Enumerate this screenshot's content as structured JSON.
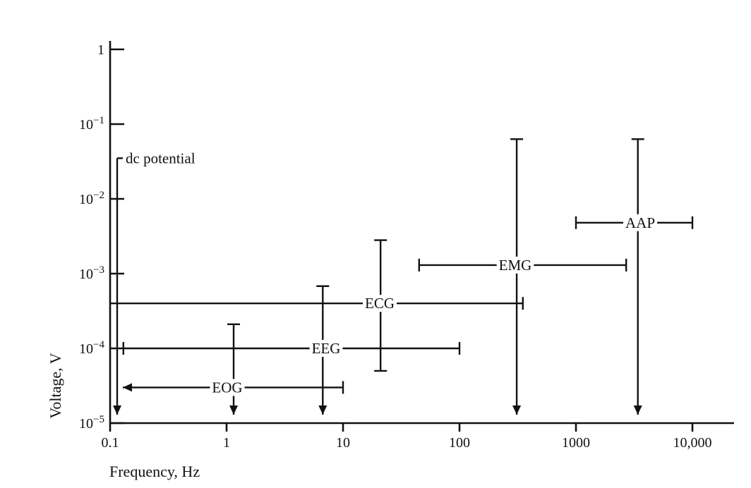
{
  "chart_data": {
    "type": "range",
    "title": "",
    "xlabel": "Frequency, Hz",
    "ylabel": "Voltage, V",
    "xscale": "log",
    "yscale": "log",
    "xlim": [
      0.1,
      10000
    ],
    "ylim": [
      1e-05,
      1
    ],
    "grid": false,
    "legend": "none",
    "x_ticks": [
      {
        "value": 0.1,
        "label": "0.1"
      },
      {
        "value": 1,
        "label": "1"
      },
      {
        "value": 10,
        "label": "10"
      },
      {
        "value": 100,
        "label": "100"
      },
      {
        "value": 1000,
        "label": "1000"
      },
      {
        "value": 10000,
        "label": "10,000"
      }
    ],
    "y_ticks": [
      {
        "value": 1,
        "base": "1",
        "exp": ""
      },
      {
        "value": 0.1,
        "base": "10",
        "exp": "−1"
      },
      {
        "value": 0.01,
        "base": "10",
        "exp": "−2"
      },
      {
        "value": 0.001,
        "base": "10",
        "exp": "−3"
      },
      {
        "value": 0.0001,
        "base": "10",
        "exp": "−4"
      },
      {
        "value": 1e-05,
        "base": "10",
        "exp": "−5"
      }
    ],
    "ranges": [
      {
        "name": "dc potential",
        "freq_range": [
          0.1,
          0.1
        ],
        "volt_range": [
          1e-05,
          0.035
        ],
        "volt_arrow_down": true
      },
      {
        "name": "EOG",
        "freq_range": [
          0.1,
          10
        ],
        "freq_at": 3e-05,
        "freq_arrow_left": true,
        "volt_at_freq": 1.15,
        "volt_range": [
          1e-05,
          0.00021
        ],
        "volt_arrow_down": true
      },
      {
        "name": "EEG",
        "freq_range": [
          0.13,
          100
        ],
        "freq_at": 0.0001,
        "volt_at_freq": 6.7,
        "volt_range": [
          1e-05,
          0.00068
        ],
        "volt_arrow_down": true
      },
      {
        "name": "ECG",
        "freq_range": [
          0.1,
          350
        ],
        "freq_at": 0.0004,
        "volt_at_freq": 21,
        "volt_range": [
          5e-05,
          0.0028
        ]
      },
      {
        "name": "EMG",
        "freq_range": [
          45,
          2700
        ],
        "freq_at": 0.0013,
        "volt_at_freq": 310,
        "volt_range": [
          1e-05,
          0.063
        ],
        "volt_arrow_down": true
      },
      {
        "name": "AAP",
        "freq_range": [
          1000,
          10000
        ],
        "freq_at": 0.0048,
        "volt_at_freq": 3400,
        "volt_range": [
          1e-05,
          0.063
        ],
        "volt_arrow_down": true
      }
    ]
  }
}
